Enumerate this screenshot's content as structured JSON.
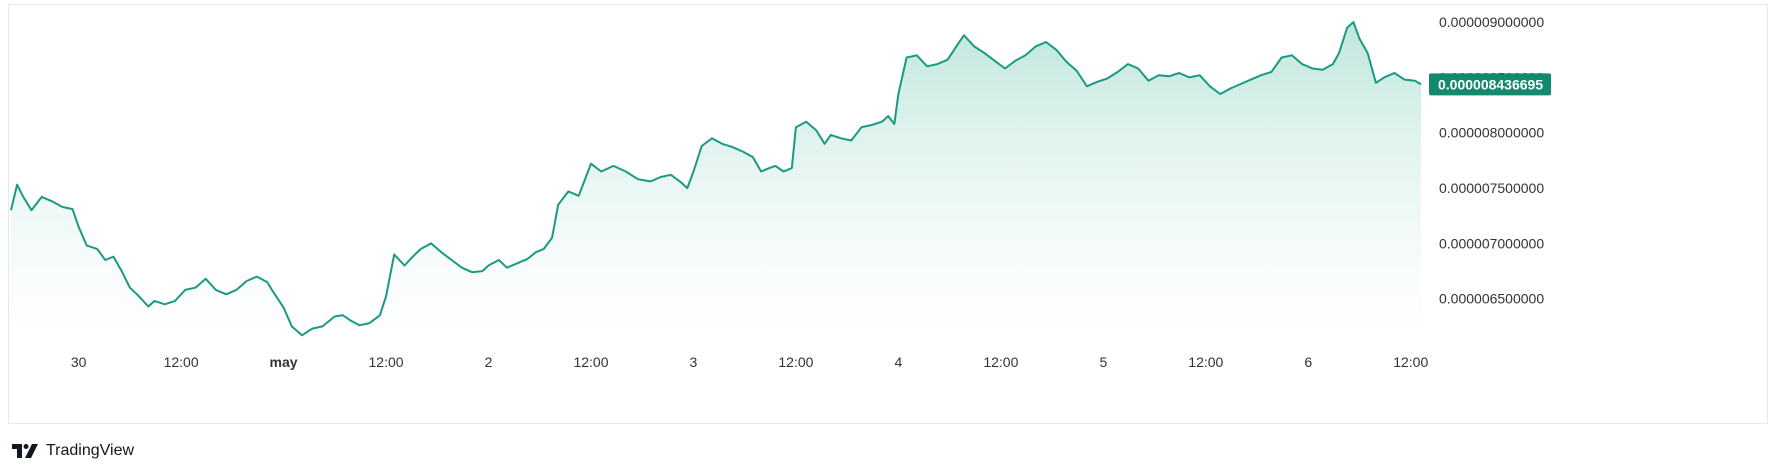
{
  "brand": {
    "name": "TradingView",
    "icon": "tradingview-logo-icon"
  },
  "colors": {
    "line": "#1a9a80",
    "fill_top": "#b7e3d8",
    "fill_bottom": "#ffffff",
    "price_tag": "#138a70",
    "axis_text": "#333333"
  },
  "price_tag": {
    "value": "0.000008436695"
  },
  "chart_data": {
    "type": "area",
    "title": "",
    "xlabel": "",
    "ylabel": "",
    "x_ticks": [
      {
        "label": "30",
        "t": 0.33,
        "bold": false
      },
      {
        "label": "12:00",
        "t": 0.83,
        "bold": false
      },
      {
        "label": "may",
        "t": 1.33,
        "bold": true
      },
      {
        "label": "12:00",
        "t": 1.83,
        "bold": false
      },
      {
        "label": "2",
        "t": 2.33,
        "bold": false
      },
      {
        "label": "12:00",
        "t": 2.83,
        "bold": false
      },
      {
        "label": "3",
        "t": 3.33,
        "bold": false
      },
      {
        "label": "12:00",
        "t": 3.83,
        "bold": false
      },
      {
        "label": "4",
        "t": 4.33,
        "bold": false
      },
      {
        "label": "12:00",
        "t": 4.83,
        "bold": false
      },
      {
        "label": "5",
        "t": 5.33,
        "bold": false
      },
      {
        "label": "12:00",
        "t": 5.83,
        "bold": false
      },
      {
        "label": "6",
        "t": 6.33,
        "bold": false
      },
      {
        "label": "12:00",
        "t": 6.83,
        "bold": false
      }
    ],
    "y_ticks": [
      "0.000009000000",
      "0.000008500000",
      "0.000008000000",
      "0.000007500000",
      "0.000007000000",
      "0.000006500000"
    ],
    "y_tick_values": [
      9e-06,
      8.5e-06,
      8e-06,
      7.5e-06,
      7e-06,
      6.5e-06
    ],
    "ylim": [
      6.1e-06,
      9.1e-06
    ],
    "xlim": [
      0,
      6.88
    ],
    "series": [
      {
        "values": [
          [
            0.0,
            7.3e-06
          ],
          [
            0.03,
            7.53e-06
          ],
          [
            0.06,
            7.42e-06
          ],
          [
            0.1,
            7.3e-06
          ],
          [
            0.15,
            7.42e-06
          ],
          [
            0.2,
            7.38e-06
          ],
          [
            0.25,
            7.33e-06
          ],
          [
            0.3,
            7.31e-06
          ],
          [
            0.33,
            7.15e-06
          ],
          [
            0.37,
            6.98e-06
          ],
          [
            0.42,
            6.95e-06
          ],
          [
            0.46,
            6.85e-06
          ],
          [
            0.5,
            6.88e-06
          ],
          [
            0.54,
            6.75e-06
          ],
          [
            0.58,
            6.6e-06
          ],
          [
            0.62,
            6.53e-06
          ],
          [
            0.67,
            6.43e-06
          ],
          [
            0.7,
            6.48e-06
          ],
          [
            0.75,
            6.45e-06
          ],
          [
            0.8,
            6.48e-06
          ],
          [
            0.85,
            6.58e-06
          ],
          [
            0.9,
            6.6e-06
          ],
          [
            0.95,
            6.68e-06
          ],
          [
            1.0,
            6.58e-06
          ],
          [
            1.05,
            6.54e-06
          ],
          [
            1.1,
            6.58e-06
          ],
          [
            1.15,
            6.66e-06
          ],
          [
            1.2,
            6.7e-06
          ],
          [
            1.25,
            6.65e-06
          ],
          [
            1.28,
            6.56e-06
          ],
          [
            1.33,
            6.42e-06
          ],
          [
            1.37,
            6.25e-06
          ],
          [
            1.42,
            6.17e-06
          ],
          [
            1.47,
            6.23e-06
          ],
          [
            1.52,
            6.25e-06
          ],
          [
            1.58,
            6.34e-06
          ],
          [
            1.62,
            6.35e-06
          ],
          [
            1.66,
            6.3e-06
          ],
          [
            1.7,
            6.26e-06
          ],
          [
            1.75,
            6.28e-06
          ],
          [
            1.8,
            6.35e-06
          ],
          [
            1.83,
            6.52e-06
          ],
          [
            1.87,
            6.9e-06
          ],
          [
            1.92,
            6.8e-06
          ],
          [
            1.96,
            6.88e-06
          ],
          [
            2.0,
            6.95e-06
          ],
          [
            2.05,
            7e-06
          ],
          [
            2.1,
            6.92e-06
          ],
          [
            2.15,
            6.85e-06
          ],
          [
            2.2,
            6.78e-06
          ],
          [
            2.25,
            6.74e-06
          ],
          [
            2.3,
            6.75e-06
          ],
          [
            2.33,
            6.8e-06
          ],
          [
            2.38,
            6.85e-06
          ],
          [
            2.42,
            6.78e-06
          ],
          [
            2.47,
            6.82e-06
          ],
          [
            2.52,
            6.86e-06
          ],
          [
            2.56,
            6.92e-06
          ],
          [
            2.6,
            6.95e-06
          ],
          [
            2.64,
            7.05e-06
          ],
          [
            2.67,
            7.35e-06
          ],
          [
            2.72,
            7.47e-06
          ],
          [
            2.77,
            7.43e-06
          ],
          [
            2.83,
            7.72e-06
          ],
          [
            2.88,
            7.65e-06
          ],
          [
            2.94,
            7.7e-06
          ],
          [
            3.0,
            7.65e-06
          ],
          [
            3.06,
            7.58e-06
          ],
          [
            3.12,
            7.56e-06
          ],
          [
            3.17,
            7.6e-06
          ],
          [
            3.22,
            7.62e-06
          ],
          [
            3.27,
            7.55e-06
          ],
          [
            3.3,
            7.5e-06
          ],
          [
            3.33,
            7.65e-06
          ],
          [
            3.37,
            7.88e-06
          ],
          [
            3.42,
            7.95e-06
          ],
          [
            3.47,
            7.9e-06
          ],
          [
            3.52,
            7.87e-06
          ],
          [
            3.57,
            7.83e-06
          ],
          [
            3.62,
            7.78e-06
          ],
          [
            3.66,
            7.65e-06
          ],
          [
            3.7,
            7.68e-06
          ],
          [
            3.73,
            7.7e-06
          ],
          [
            3.77,
            7.65e-06
          ],
          [
            3.81,
            7.68e-06
          ],
          [
            3.83,
            8.05e-06
          ],
          [
            3.88,
            8.1e-06
          ],
          [
            3.93,
            8.02e-06
          ],
          [
            3.97,
            7.9e-06
          ],
          [
            4.0,
            7.98e-06
          ],
          [
            4.05,
            7.95e-06
          ],
          [
            4.1,
            7.93e-06
          ],
          [
            4.15,
            8.05e-06
          ],
          [
            4.2,
            8.07e-06
          ],
          [
            4.25,
            8.1e-06
          ],
          [
            4.28,
            8.15e-06
          ],
          [
            4.31,
            8.08e-06
          ],
          [
            4.33,
            8.35e-06
          ],
          [
            4.37,
            8.68e-06
          ],
          [
            4.42,
            8.7e-06
          ],
          [
            4.47,
            8.6e-06
          ],
          [
            4.52,
            8.62e-06
          ],
          [
            4.57,
            8.66e-06
          ],
          [
            4.62,
            8.8e-06
          ],
          [
            4.65,
            8.88e-06
          ],
          [
            4.7,
            8.78e-06
          ],
          [
            4.75,
            8.72e-06
          ],
          [
            4.8,
            8.65e-06
          ],
          [
            4.85,
            8.58e-06
          ],
          [
            4.9,
            8.65e-06
          ],
          [
            4.95,
            8.7e-06
          ],
          [
            5.0,
            8.78e-06
          ],
          [
            5.05,
            8.82e-06
          ],
          [
            5.1,
            8.75e-06
          ],
          [
            5.15,
            8.64e-06
          ],
          [
            5.2,
            8.56e-06
          ],
          [
            5.25,
            8.42e-06
          ],
          [
            5.3,
            8.46e-06
          ],
          [
            5.35,
            8.49e-06
          ],
          [
            5.4,
            8.55e-06
          ],
          [
            5.45,
            8.62e-06
          ],
          [
            5.5,
            8.58e-06
          ],
          [
            5.55,
            8.47e-06
          ],
          [
            5.6,
            8.52e-06
          ],
          [
            5.65,
            8.51e-06
          ],
          [
            5.7,
            8.54e-06
          ],
          [
            5.75,
            8.5e-06
          ],
          [
            5.8,
            8.52e-06
          ],
          [
            5.85,
            8.42e-06
          ],
          [
            5.9,
            8.35e-06
          ],
          [
            5.95,
            8.4e-06
          ],
          [
            6.0,
            8.44e-06
          ],
          [
            6.05,
            8.48e-06
          ],
          [
            6.1,
            8.52e-06
          ],
          [
            6.15,
            8.55e-06
          ],
          [
            6.2,
            8.68e-06
          ],
          [
            6.25,
            8.7e-06
          ],
          [
            6.3,
            8.62e-06
          ],
          [
            6.35,
            8.58e-06
          ],
          [
            6.4,
            8.57e-06
          ],
          [
            6.45,
            8.62e-06
          ],
          [
            6.48,
            8.72e-06
          ],
          [
            6.52,
            8.95e-06
          ],
          [
            6.55,
            9e-06
          ],
          [
            6.58,
            8.85e-06
          ],
          [
            6.62,
            8.72e-06
          ],
          [
            6.66,
            8.45e-06
          ],
          [
            6.7,
            8.5e-06
          ],
          [
            6.75,
            8.54e-06
          ],
          [
            6.8,
            8.48e-06
          ],
          [
            6.85,
            8.47e-06
          ],
          [
            6.88,
            8.437e-06
          ]
        ]
      }
    ]
  }
}
